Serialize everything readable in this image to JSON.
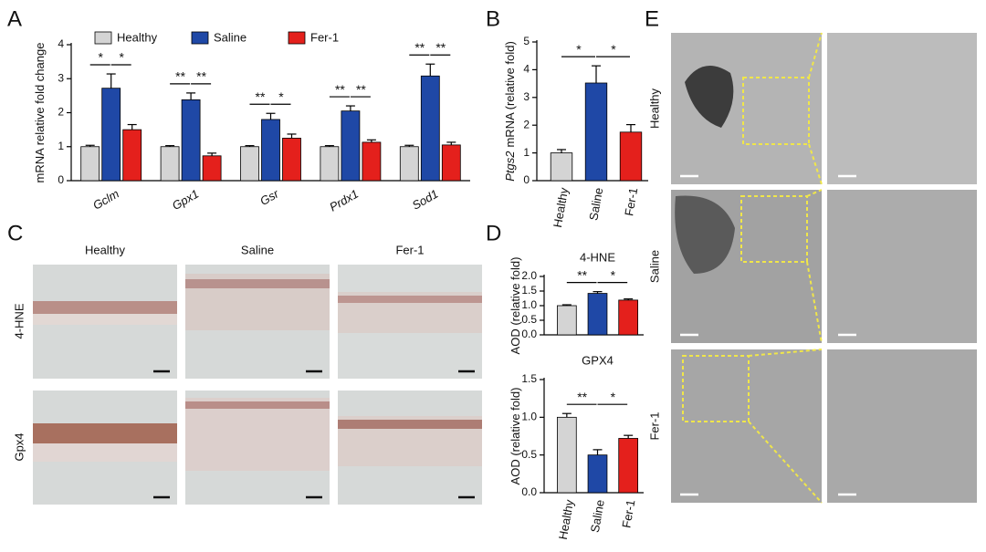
{
  "panels": [
    "A",
    "B",
    "C",
    "D",
    "E"
  ],
  "histology": {
    "columns": [
      "Healthy",
      "Saline",
      "Fer-1"
    ],
    "rows": [
      "4-HNE",
      "Gpx4"
    ]
  },
  "electron_microscopy": {
    "rows": [
      "Healthy",
      "Saline",
      "Fer-1"
    ]
  },
  "chart_data": [
    {
      "type": "bar",
      "ylabel": "mRNA relative fold change",
      "categories": [
        "Gclm",
        "Gpx1",
        "Gsr",
        "Prdx1",
        "Sod1"
      ],
      "series": [
        {
          "name": "Healthy",
          "color": "#d4d4d4",
          "values": [
            1.0,
            1.0,
            1.0,
            1.0,
            1.0
          ],
          "errors": [
            0.04,
            0.03,
            0.03,
            0.03,
            0.04
          ]
        },
        {
          "name": "Saline",
          "color": "#1f48a6",
          "values": [
            2.72,
            2.38,
            1.8,
            2.05,
            3.08
          ],
          "errors": [
            0.42,
            0.2,
            0.18,
            0.15,
            0.35
          ]
        },
        {
          "name": "Fer-1",
          "color": "#e4201c",
          "values": [
            1.5,
            0.73,
            1.25,
            1.13,
            1.05
          ],
          "errors": [
            0.15,
            0.08,
            0.12,
            0.07,
            0.08
          ]
        }
      ],
      "significance": [
        [
          "*",
          "*"
        ],
        [
          "**",
          "**"
        ],
        [
          "**",
          "*"
        ],
        [
          "**",
          "**"
        ],
        [
          "**",
          "**"
        ]
      ],
      "ylim": [
        0,
        4
      ],
      "yticks": [
        0,
        1,
        2,
        3,
        4
      ]
    },
    {
      "type": "bar",
      "ylabel_gene": "Ptgs2",
      "ylabel": "mRNA (relative fold)",
      "categories": [
        "Healthy",
        "Saline",
        "Fer-1"
      ],
      "colors": [
        "#d4d4d4",
        "#1f48a6",
        "#e4201c"
      ],
      "values": [
        1.0,
        3.52,
        1.75
      ],
      "errors": [
        0.12,
        0.62,
        0.27
      ],
      "significance": [
        "*",
        "*"
      ],
      "ylim": [
        0,
        5
      ],
      "yticks": [
        0,
        1,
        2,
        3,
        4,
        5
      ]
    },
    {
      "type": "bar",
      "title": "4-HNE",
      "ylabel": "AOD (relative fold)",
      "colors": [
        "#d4d4d4",
        "#1f48a6",
        "#e4201c"
      ],
      "values": [
        1.0,
        1.42,
        1.19
      ],
      "errors": [
        0.03,
        0.06,
        0.04
      ],
      "significance": [
        "**",
        "*"
      ],
      "ylim": [
        0,
        2
      ],
      "yticks": [
        {
          "value": 0,
          "label": "0.0"
        },
        0.5,
        {
          "value": 1,
          "label": "1.0"
        },
        1.5,
        {
          "value": 2,
          "label": "2.0"
        }
      ]
    },
    {
      "type": "bar",
      "title": "GPX4",
      "ylabel": "AOD (relative fold)",
      "categories": [
        "Healthy",
        "Saline",
        "Fer-1"
      ],
      "colors": [
        "#d4d4d4",
        "#1f48a6",
        "#e4201c"
      ],
      "values": [
        1.0,
        0.5,
        0.72
      ],
      "errors": [
        0.05,
        0.07,
        0.04
      ],
      "significance": [
        "**",
        "*"
      ],
      "ylim": [
        0,
        1.5
      ],
      "yticks": [
        {
          "value": 0,
          "label": "0.0"
        },
        0.5,
        {
          "value": 1,
          "label": "1.0"
        },
        1.5
      ]
    }
  ]
}
